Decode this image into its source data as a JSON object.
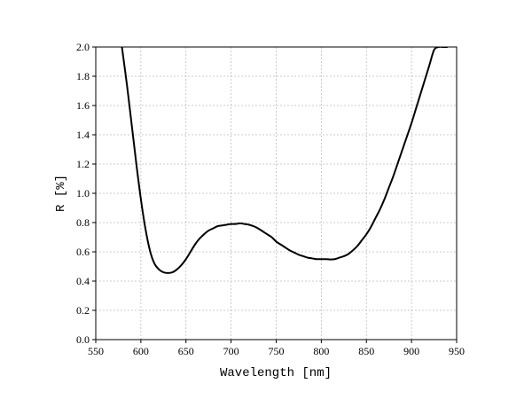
{
  "chart_data": {
    "type": "line",
    "xlabel": "Wavelength [nm]",
    "ylabel": "R [%]",
    "xlim": [
      550,
      950
    ],
    "ylim": [
      0.0,
      2.0
    ],
    "x_ticks": [
      "550",
      "600",
      "650",
      "700",
      "750",
      "800",
      "850",
      "900",
      "950"
    ],
    "y_ticks": [
      "0.0",
      "0.2",
      "0.4",
      "0.6",
      "0.8",
      "1.0",
      "1.2",
      "1.4",
      "1.6",
      "1.8",
      "2.0"
    ],
    "grid": true,
    "series": [
      {
        "color": "#000000",
        "x": [
          579,
          585,
          590,
          595,
          600,
          605,
          610,
          615,
          620,
          625,
          630,
          635,
          640,
          645,
          650,
          655,
          660,
          665,
          670,
          675,
          680,
          685,
          690,
          695,
          700,
          705,
          710,
          715,
          720,
          725,
          730,
          735,
          740,
          745,
          750,
          755,
          760,
          765,
          770,
          775,
          780,
          785,
          790,
          795,
          800,
          805,
          810,
          815,
          820,
          825,
          830,
          835,
          840,
          845,
          850,
          855,
          860,
          865,
          870,
          875,
          880,
          885,
          890,
          895,
          900,
          905,
          910,
          915,
          920,
          925,
          930,
          935,
          940
        ],
        "y": [
          2.0,
          1.72,
          1.46,
          1.2,
          0.96,
          0.76,
          0.61,
          0.52,
          0.48,
          0.46,
          0.455,
          0.46,
          0.48,
          0.51,
          0.55,
          0.6,
          0.65,
          0.69,
          0.72,
          0.745,
          0.76,
          0.775,
          0.78,
          0.785,
          0.79,
          0.79,
          0.795,
          0.79,
          0.785,
          0.775,
          0.76,
          0.74,
          0.72,
          0.7,
          0.67,
          0.65,
          0.63,
          0.61,
          0.595,
          0.58,
          0.57,
          0.56,
          0.555,
          0.55,
          0.55,
          0.55,
          0.548,
          0.55,
          0.56,
          0.57,
          0.585,
          0.61,
          0.64,
          0.68,
          0.72,
          0.77,
          0.83,
          0.89,
          0.96,
          1.04,
          1.12,
          1.21,
          1.3,
          1.39,
          1.48,
          1.58,
          1.68,
          1.78,
          1.88,
          1.98,
          2.0,
          2.0,
          2.0
        ]
      }
    ]
  }
}
